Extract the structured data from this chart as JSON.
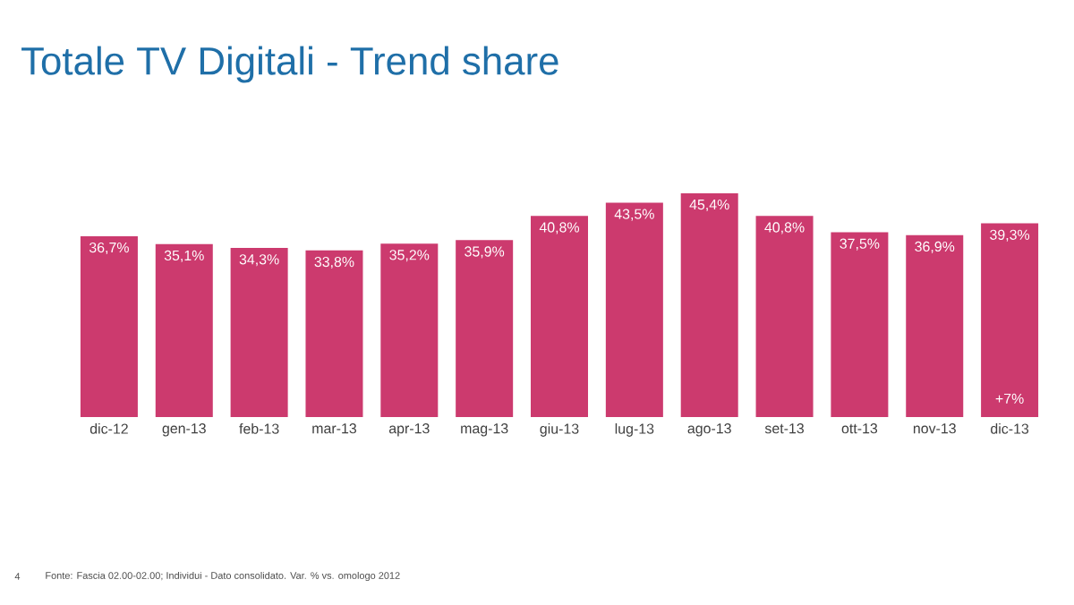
{
  "chart_data": {
    "type": "bar",
    "title": "Totale TV Digitali - Trend share",
    "categories": [
      "dic-12",
      "gen-13",
      "feb-13",
      "mar-13",
      "apr-13",
      "mag-13",
      "giu-13",
      "lug-13",
      "ago-13",
      "set-13",
      "ott-13",
      "nov-13",
      "dic-13"
    ],
    "values": [
      36.7,
      35.1,
      34.3,
      33.8,
      35.2,
      35.9,
      40.8,
      43.5,
      45.4,
      40.8,
      37.5,
      36.9,
      39.3
    ],
    "value_labels": [
      "36,7%",
      "35,1%",
      "34,3%",
      "33,8%",
      "35,2%",
      "35,9%",
      "40,8%",
      "43,5%",
      "45,4%",
      "40,8%",
      "37,5%",
      "36,9%",
      "39,3%"
    ],
    "color": "#cc3a6e",
    "annotations": [
      "+7%",
      "4",
      "Fonte: Fascia 02.00-02.00; Individui - Dato consolidato. Var. % vs. omologo 2012"
    ]
  }
}
